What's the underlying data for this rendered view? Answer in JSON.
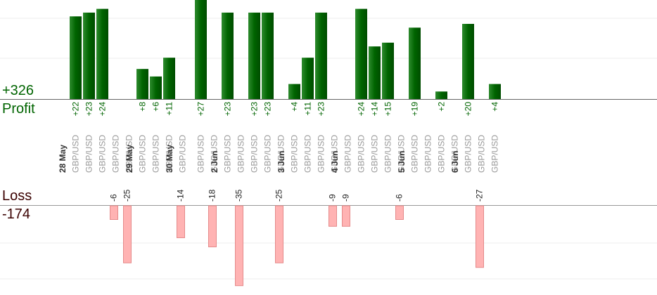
{
  "summary": {
    "profit_total": "+326",
    "profit_label": "Profit",
    "loss_label": "Loss",
    "loss_total": "-174"
  },
  "colors": {
    "profit_fill": "#006400",
    "profit_text": "#006400",
    "loss_fill": "#ffb3b3",
    "loss_stroke": "#e58a8a",
    "loss_text": "#3a0000",
    "pair_text": "#999999",
    "date_text": "#333333",
    "grid": "#eeeeee"
  },
  "chart_data": {
    "type": "bar",
    "grid": true,
    "series": [
      {
        "name": "Profit",
        "values": [
          22,
          23,
          24,
          null,
          null,
          8,
          6,
          11,
          null,
          27,
          null,
          23,
          null,
          23,
          23,
          null,
          4,
          11,
          23,
          null,
          null,
          24,
          14,
          15,
          null,
          19,
          null,
          2,
          null,
          20,
          null,
          4
        ]
      },
      {
        "name": "Loss",
        "values": [
          null,
          null,
          null,
          -6,
          -25,
          null,
          null,
          null,
          -14,
          null,
          -18,
          null,
          -35,
          null,
          null,
          -25,
          null,
          null,
          null,
          -9,
          -9,
          null,
          null,
          null,
          -6,
          null,
          null,
          null,
          null,
          null,
          -27,
          null
        ]
      }
    ],
    "profit_labels": [
      "+22",
      "+23",
      "+24",
      "",
      "",
      "+8",
      "+6",
      "+11",
      "",
      "+27",
      "",
      "+23",
      "",
      "+23",
      "+23",
      "",
      "+4",
      "+11",
      "+23",
      "",
      "",
      "+24",
      "+14",
      "+15",
      "",
      "+19",
      "",
      "+2",
      "",
      "+20",
      "",
      "+4"
    ],
    "loss_labels": [
      "",
      "",
      "",
      "-6",
      "-25",
      "",
      "",
      "",
      "-14",
      "",
      "-18",
      "",
      "-35",
      "",
      "",
      "-25",
      "",
      "",
      "",
      "-9",
      "-9",
      "",
      "",
      "",
      "-6",
      "",
      "",
      "",
      "",
      "",
      "-27",
      ""
    ],
    "categories": [
      "GBP/USD",
      "GBP/USD",
      "GBP/USD",
      "GBP/USD",
      "GBP/USD",
      "GBP/USD",
      "GBP/USD",
      "GBP/USD",
      "GBP/USD",
      "GBP/USD",
      "GBP/USD",
      "GBP/USD",
      "GBP/USD",
      "GBP/USD",
      "GBP/USD",
      "GBP/USD",
      "GBP/USD",
      "GBP/USD",
      "GBP/USD",
      "GBP/USD",
      "GBP/USD",
      "GBP/USD",
      "GBP/USD",
      "GBP/USD",
      "GBP/USD",
      "GBP/USD",
      "GBP/USD",
      "GBP/USD",
      "GBP/USD",
      "GBP/USD",
      "GBP/USD",
      "GBP/USD"
    ],
    "date_labels": [
      "28 May",
      "29 May",
      "30 May",
      "2 Jun",
      "3 Jun",
      "4 Jun",
      "5 Jun",
      "6 Jun"
    ],
    "date_groups": [
      0,
      0,
      0,
      0,
      0,
      1,
      1,
      1,
      2,
      2,
      2,
      3,
      3,
      3,
      3,
      3,
      4,
      4,
      4,
      4,
      5,
      5,
      5,
      5,
      5,
      6,
      6,
      6,
      6,
      7,
      7,
      7
    ]
  }
}
